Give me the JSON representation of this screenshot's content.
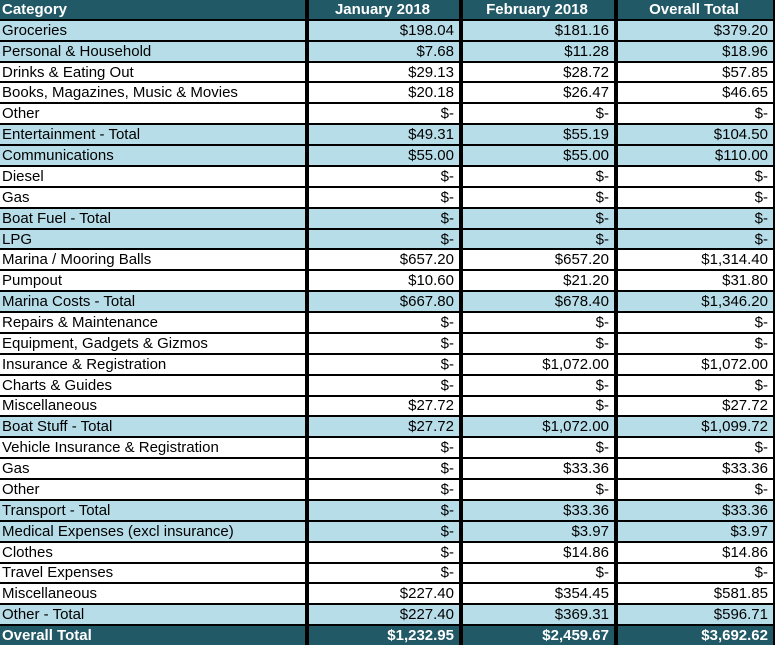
{
  "header": {
    "category": "Category",
    "col1": "January 2018",
    "col2": "February 2018",
    "col3": "Overall Total"
  },
  "rows": [
    {
      "label": "Groceries",
      "jan": "$198.04",
      "feb": "$181.16",
      "total": "$379.20",
      "highlight": true
    },
    {
      "label": "Personal & Household",
      "jan": "$7.68",
      "feb": "$11.28",
      "total": "$18.96",
      "highlight": true
    },
    {
      "label": "Drinks & Eating Out",
      "jan": "$29.13",
      "feb": "$28.72",
      "total": "$57.85",
      "highlight": false
    },
    {
      "label": "Books, Magazines, Music & Movies",
      "jan": "$20.18",
      "feb": "$26.47",
      "total": "$46.65",
      "highlight": false
    },
    {
      "label": "Other",
      "jan": "$-",
      "feb": "$-",
      "total": "$-",
      "highlight": false
    },
    {
      "label": "Entertainment - Total",
      "jan": "$49.31",
      "feb": "$55.19",
      "total": "$104.50",
      "highlight": true
    },
    {
      "label": "Communications",
      "jan": "$55.00",
      "feb": "$55.00",
      "total": "$110.00",
      "highlight": true
    },
    {
      "label": "Diesel",
      "jan": "$-",
      "feb": "$-",
      "total": "$-",
      "highlight": false
    },
    {
      "label": "Gas",
      "jan": "$-",
      "feb": "$-",
      "total": "$-",
      "highlight": false
    },
    {
      "label": "Boat Fuel - Total",
      "jan": "$-",
      "feb": "$-",
      "total": "$-",
      "highlight": true
    },
    {
      "label": "LPG",
      "jan": "$-",
      "feb": "$-",
      "total": "$-",
      "highlight": true
    },
    {
      "label": "Marina / Mooring Balls",
      "jan": "$657.20",
      "feb": "$657.20",
      "total": "$1,314.40",
      "highlight": false
    },
    {
      "label": "Pumpout",
      "jan": "$10.60",
      "feb": "$21.20",
      "total": "$31.80",
      "highlight": false
    },
    {
      "label": "Marina Costs - Total",
      "jan": "$667.80",
      "feb": "$678.40",
      "total": "$1,346.20",
      "highlight": true
    },
    {
      "label": "Repairs & Maintenance",
      "jan": "$-",
      "feb": "$-",
      "total": "$-",
      "highlight": false
    },
    {
      "label": "Equipment, Gadgets & Gizmos",
      "jan": "$-",
      "feb": "$-",
      "total": "$-",
      "highlight": false
    },
    {
      "label": "Insurance & Registration",
      "jan": "$-",
      "feb": "$1,072.00",
      "total": "$1,072.00",
      "highlight": false
    },
    {
      "label": "Charts & Guides",
      "jan": "$-",
      "feb": "$-",
      "total": "$-",
      "highlight": false
    },
    {
      "label": "Miscellaneous",
      "jan": "$27.72",
      "feb": "$-",
      "total": "$27.72",
      "highlight": false
    },
    {
      "label": "Boat Stuff - Total",
      "jan": "$27.72",
      "feb": "$1,072.00",
      "total": "$1,099.72",
      "highlight": true
    },
    {
      "label": "Vehicle Insurance & Registration",
      "jan": "$-",
      "feb": "$-",
      "total": "$-",
      "highlight": false
    },
    {
      "label": "Gas",
      "jan": "$-",
      "feb": "$33.36",
      "total": "$33.36",
      "highlight": false
    },
    {
      "label": "Other",
      "jan": "$-",
      "feb": "$-",
      "total": "$-",
      "highlight": false
    },
    {
      "label": "Transport - Total",
      "jan": "$-",
      "feb": "$33.36",
      "total": "$33.36",
      "highlight": true
    },
    {
      "label": "Medical Expenses (excl insurance)",
      "jan": "$-",
      "feb": "$3.97",
      "total": "$3.97",
      "highlight": true
    },
    {
      "label": "Clothes",
      "jan": "$-",
      "feb": "$14.86",
      "total": "$14.86",
      "highlight": false
    },
    {
      "label": "Travel Expenses",
      "jan": "$-",
      "feb": "$-",
      "total": "$-",
      "highlight": false
    },
    {
      "label": "Miscellaneous",
      "jan": "$227.40",
      "feb": "$354.45",
      "total": "$581.85",
      "highlight": false
    },
    {
      "label": "Other - Total",
      "jan": "$227.40",
      "feb": "$369.31",
      "total": "$596.71",
      "highlight": true
    }
  ],
  "footer": {
    "label": "Overall Total",
    "jan": "$1,232.95",
    "feb": "$2,459.67",
    "total": "$3,692.62"
  },
  "colors": {
    "header": "#215967",
    "highlight": "#b7dde8",
    "border": "#000000"
  }
}
